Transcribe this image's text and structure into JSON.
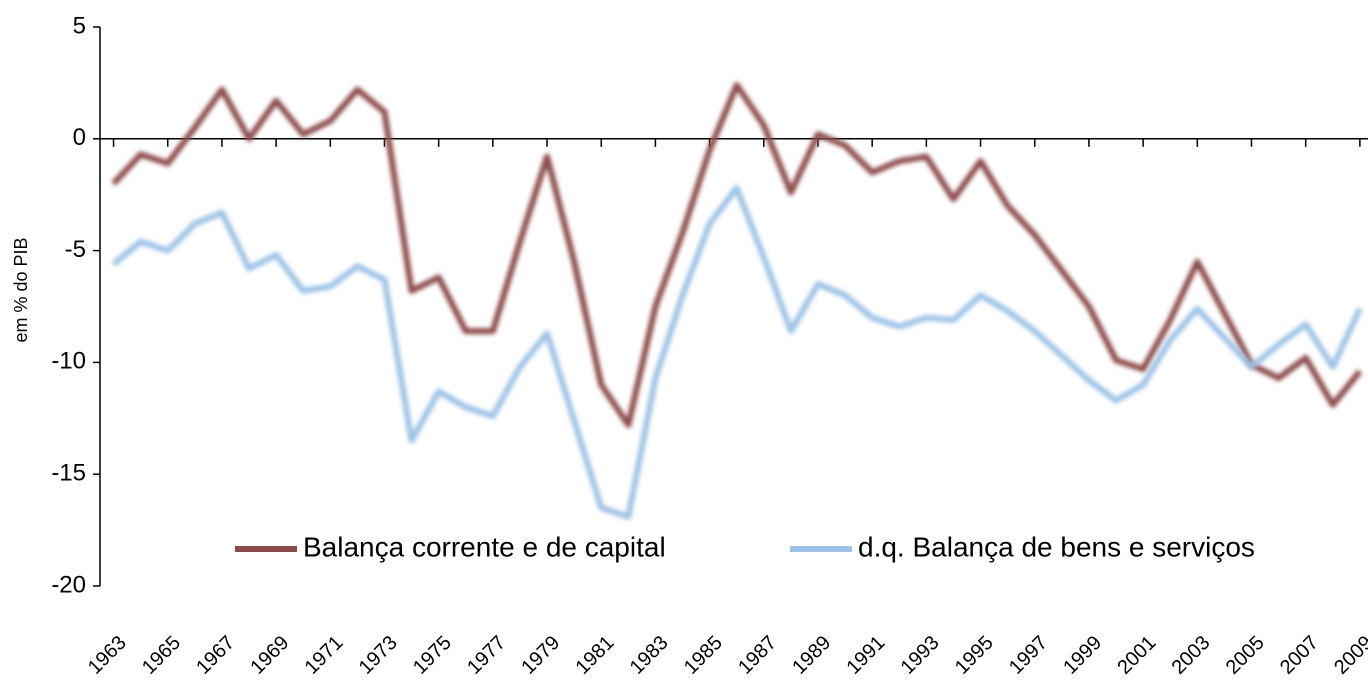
{
  "chart_data": {
    "type": "line",
    "y_label": "em % do PIB",
    "x": [
      1963,
      1964,
      1965,
      1966,
      1967,
      1968,
      1969,
      1970,
      1971,
      1972,
      1973,
      1974,
      1975,
      1976,
      1977,
      1978,
      1979,
      1980,
      1981,
      1982,
      1983,
      1984,
      1985,
      1986,
      1987,
      1988,
      1989,
      1990,
      1991,
      1992,
      1993,
      1994,
      1995,
      1996,
      1997,
      1998,
      1999,
      2000,
      2001,
      2002,
      2003,
      2004,
      2005,
      2006,
      2007,
      2008,
      2009
    ],
    "series": [
      {
        "name": "Balança corrente e de capital",
        "color": "#8c4b4b",
        "values": [
          -2.0,
          -0.7,
          -1.1,
          0.5,
          2.2,
          0.0,
          1.7,
          0.2,
          0.8,
          2.2,
          1.2,
          -6.8,
          -6.2,
          -8.6,
          -8.6,
          -4.6,
          -0.8,
          -5.5,
          -11.0,
          -12.8,
          -7.5,
          -4.2,
          -0.5,
          2.4,
          0.6,
          -2.4,
          0.2,
          -0.3,
          -1.5,
          -1.0,
          -0.8,
          -2.7,
          -1.0,
          -3.0,
          -4.3,
          -5.9,
          -7.5,
          -9.9,
          -10.3,
          -8.1,
          -5.5,
          -7.8,
          -10.1,
          -10.7,
          -9.8,
          -11.9,
          -10.4
        ]
      },
      {
        "name": "d.q. Balança de bens e serviços",
        "color": "#9dc3e6",
        "values": [
          -5.6,
          -4.6,
          -5.0,
          -3.8,
          -3.3,
          -5.8,
          -5.2,
          -6.8,
          -6.6,
          -5.7,
          -6.3,
          -13.5,
          -11.3,
          -12.0,
          -12.4,
          -10.2,
          -8.7,
          -12.6,
          -16.5,
          -16.9,
          -10.7,
          -7.0,
          -3.8,
          -2.2,
          -5.3,
          -8.6,
          -6.5,
          -7.0,
          -8.0,
          -8.4,
          -8.0,
          -8.1,
          -7.0,
          -7.7,
          -8.6,
          -9.7,
          -10.8,
          -11.7,
          -11.0,
          -9.0,
          -7.6,
          -8.9,
          -10.2,
          -9.2,
          -8.3,
          -10.2,
          -7.6
        ]
      }
    ],
    "xlim": [
      1962.5,
      2009.3
    ],
    "xticks": [
      1963,
      1965,
      1967,
      1969,
      1971,
      1973,
      1975,
      1977,
      1979,
      1981,
      1983,
      1985,
      1987,
      1989,
      1991,
      1993,
      1995,
      1997,
      1999,
      2001,
      2003,
      2005,
      2007,
      2009
    ],
    "ylim": [
      -20,
      5
    ],
    "yticks": [
      -20,
      -15,
      -10,
      -5,
      0,
      5
    ],
    "legend": "bottom"
  }
}
